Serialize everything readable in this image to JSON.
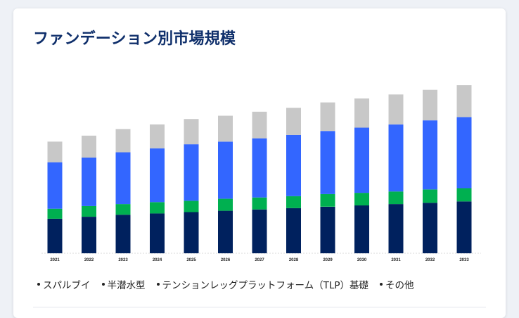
{
  "chart_data": {
    "type": "bar",
    "stacked": true,
    "title": "ファンデーション別市場規模",
    "categories": [
      "2021",
      "2022",
      "2023",
      "2024",
      "2025",
      "2026",
      "2027",
      "2028",
      "2029",
      "2030",
      "2031",
      "2032",
      "2033"
    ],
    "series": [
      {
        "name": "スパルブイ",
        "color": "#00215e",
        "values": [
          52,
          55,
          58,
          60,
          62,
          64,
          66,
          68,
          70,
          72,
          74,
          76,
          78
        ]
      },
      {
        "name": "半潜水型",
        "color": "#00b050",
        "values": [
          15,
          16,
          16,
          17,
          17,
          18,
          18,
          18,
          19,
          19,
          19,
          20,
          20
        ]
      },
      {
        "name": "テンションレッグプラットフォーム（TLP）基礎",
        "color": "#3366ff",
        "values": [
          70,
          73,
          78,
          81,
          85,
          86,
          89,
          92,
          95,
          98,
          101,
          104,
          107
        ]
      },
      {
        "name": "その他",
        "color": "#c8c8c8",
        "values": [
          31,
          33,
          35,
          36,
          38,
          39,
          40,
          41,
          43,
          44,
          45,
          46,
          48
        ]
      }
    ],
    "ylim": [
      0,
      270
    ],
    "grid": false,
    "legend": "bottom"
  }
}
